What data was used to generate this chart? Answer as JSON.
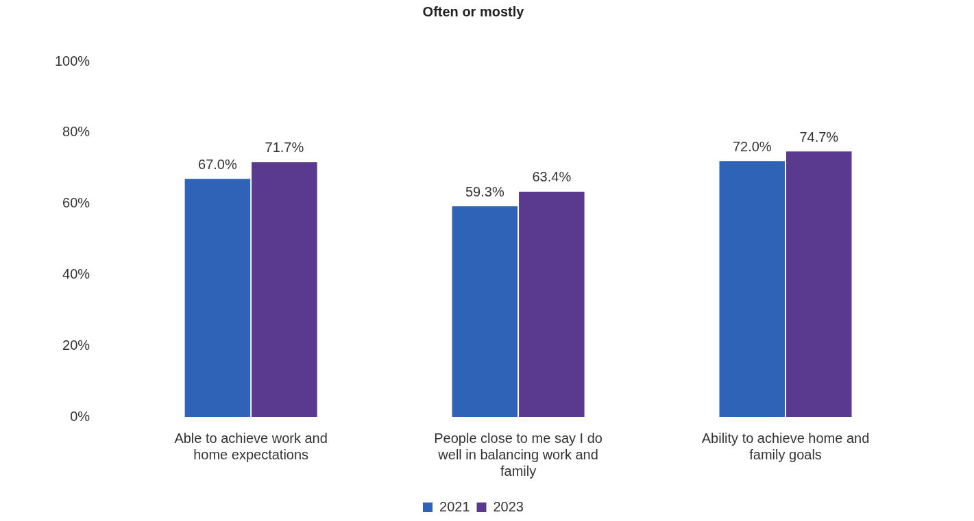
{
  "chart_data": {
    "type": "bar",
    "title": "Often or mostly",
    "categories": [
      "Able to achieve work and home expectations",
      "People close to me say I do well in balancing work and family",
      "Ability to achieve home and family goals"
    ],
    "series": [
      {
        "name": "2021",
        "color": "#2f63b8",
        "values": [
          67.0,
          59.3,
          72.0
        ],
        "value_labels": [
          "67.0%",
          "59.3%",
          "72.0%"
        ]
      },
      {
        "name": "2023",
        "color": "#5a3a8e",
        "values": [
          71.7,
          63.4,
          74.7
        ],
        "value_labels": [
          "71.7%",
          "63.4%",
          "74.7%"
        ]
      }
    ],
    "ylim": [
      0,
      100
    ],
    "yticks": [
      {
        "value": 0,
        "label": "0%"
      },
      {
        "value": 20,
        "label": "20%"
      },
      {
        "value": 40,
        "label": "40%"
      },
      {
        "value": 60,
        "label": "60%"
      },
      {
        "value": 80,
        "label": "80%"
      },
      {
        "value": 100,
        "label": "100%"
      }
    ],
    "grid": false,
    "legend": "bottom"
  }
}
